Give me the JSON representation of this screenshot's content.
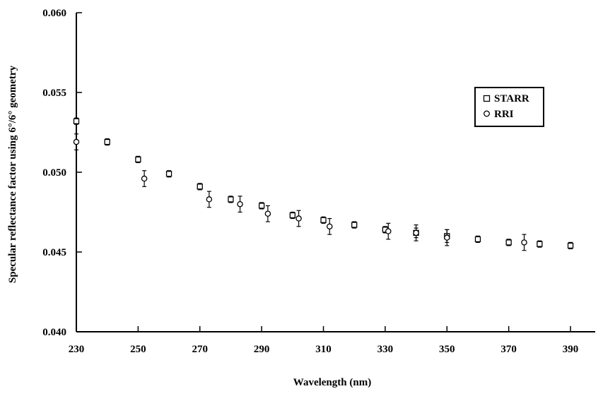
{
  "chart_data": {
    "type": "scatter",
    "title": "",
    "xlabel": "Wavelength (nm)",
    "ylabel": "Specular reflectance factor using 6°/6° geometry",
    "xlim": [
      230,
      398
    ],
    "ylim": [
      0.04,
      0.06
    ],
    "x_ticks": [
      230,
      250,
      270,
      290,
      310,
      330,
      350,
      370,
      390
    ],
    "x_tick_labels": [
      "230",
      "250",
      "270",
      "290",
      "310",
      "330",
      "350",
      "370",
      "390"
    ],
    "y_ticks": [
      0.04,
      0.045,
      0.05,
      0.055,
      0.06
    ],
    "y_tick_labels": [
      "0.040",
      "0.045",
      "0.050",
      "0.055",
      "0.060"
    ],
    "grid": false,
    "legend_position": "top-right",
    "series": [
      {
        "name": "STARR",
        "marker": "square",
        "points": [
          {
            "x": 230,
            "y": 0.0532,
            "err": 0.0002
          },
          {
            "x": 240,
            "y": 0.0519,
            "err": 0.0002
          },
          {
            "x": 250,
            "y": 0.0508,
            "err": 0.0002
          },
          {
            "x": 260,
            "y": 0.0499,
            "err": 0.0002
          },
          {
            "x": 270,
            "y": 0.0491,
            "err": 0.0002
          },
          {
            "x": 280,
            "y": 0.0483,
            "err": 0.0002
          },
          {
            "x": 290,
            "y": 0.0479,
            "err": 0.0002
          },
          {
            "x": 300,
            "y": 0.0473,
            "err": 0.0002
          },
          {
            "x": 310,
            "y": 0.047,
            "err": 0.0002
          },
          {
            "x": 320,
            "y": 0.0467,
            "err": 0.0002
          },
          {
            "x": 330,
            "y": 0.0464,
            "err": 0.0002
          },
          {
            "x": 340,
            "y": 0.0462,
            "err": 0.0003
          },
          {
            "x": 350,
            "y": 0.046,
            "err": 0.0004
          },
          {
            "x": 360,
            "y": 0.0458,
            "err": 0.0002
          },
          {
            "x": 370,
            "y": 0.0456,
            "err": 0.0002
          },
          {
            "x": 380,
            "y": 0.0455,
            "err": 0.0002
          },
          {
            "x": 390,
            "y": 0.0454,
            "err": 0.0002
          }
        ]
      },
      {
        "name": "RRI",
        "marker": "circle",
        "points": [
          {
            "x": 230,
            "y": 0.0519,
            "err": 0.0005
          },
          {
            "x": 252,
            "y": 0.0496,
            "err": 0.0005
          },
          {
            "x": 273,
            "y": 0.0483,
            "err": 0.0005
          },
          {
            "x": 283,
            "y": 0.048,
            "err": 0.0005
          },
          {
            "x": 292,
            "y": 0.0474,
            "err": 0.0005
          },
          {
            "x": 302,
            "y": 0.0471,
            "err": 0.0005
          },
          {
            "x": 312,
            "y": 0.0466,
            "err": 0.0005
          },
          {
            "x": 331,
            "y": 0.0463,
            "err": 0.0005
          },
          {
            "x": 340,
            "y": 0.0462,
            "err": 0.0005
          },
          {
            "x": 350,
            "y": 0.0459,
            "err": 0.0005
          },
          {
            "x": 375,
            "y": 0.0456,
            "err": 0.0005
          }
        ]
      }
    ]
  }
}
